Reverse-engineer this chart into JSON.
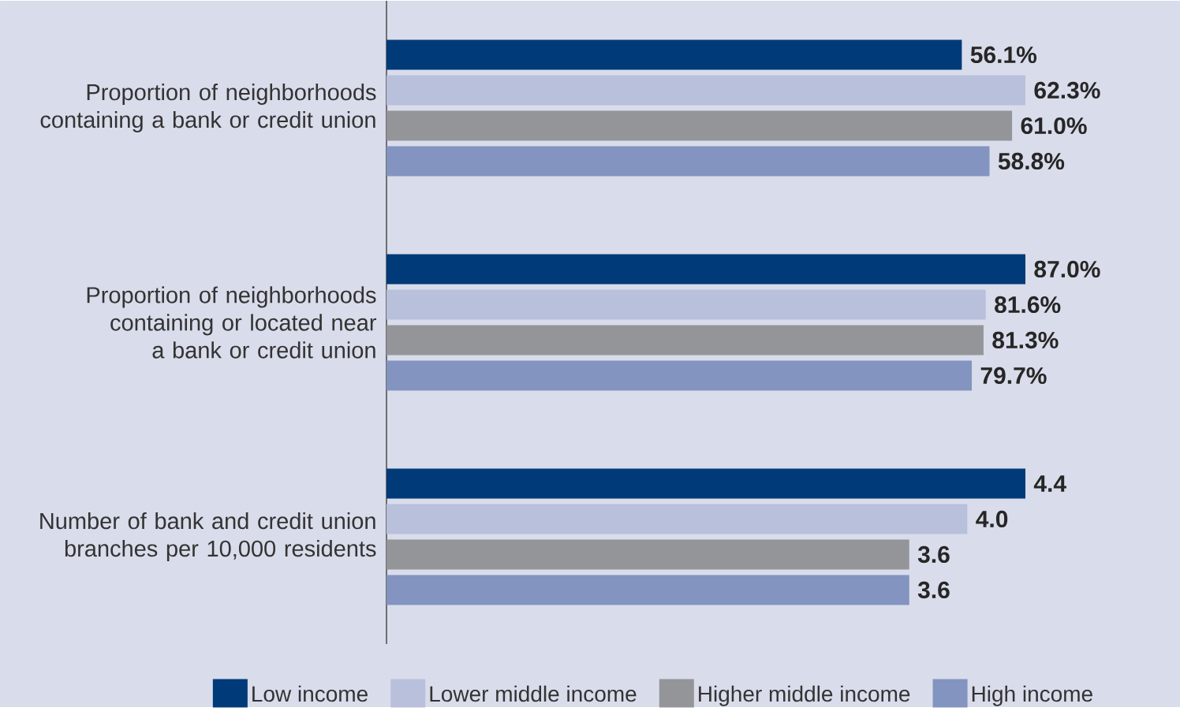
{
  "chart_data": [
    {
      "type": "bar",
      "orientation": "horizontal",
      "categories": [
        "Proportion of neighborhoods containing a bank or credit union"
      ],
      "series": [
        {
          "color": "#003a78",
          "values": [
            56.1
          ],
          "value_labels": [
            "56.1%"
          ]
        },
        {
          "color": "#b9c0dc",
          "values": [
            62.3
          ],
          "value_labels": [
            "62.3%"
          ]
        },
        {
          "color": "#949598",
          "values": [
            61.0
          ],
          "value_labels": [
            "61.0%"
          ]
        },
        {
          "color": "#8294bf",
          "values": [
            58.8
          ],
          "value_labels": [
            "58.8%"
          ]
        }
      ]
    },
    {
      "type": "bar",
      "orientation": "horizontal",
      "categories": [
        "Proportion of neighborhoods containing or located near a bank or credit union"
      ],
      "series": [
        {
          "color": "#003a78",
          "values": [
            87.0
          ],
          "value_labels": [
            "87.0%"
          ]
        },
        {
          "color": "#b9c0dc",
          "values": [
            81.6
          ],
          "value_labels": [
            "81.6%"
          ]
        },
        {
          "color": "#949598",
          "values": [
            81.3
          ],
          "value_labels": [
            "81.3%"
          ]
        },
        {
          "color": "#8294bf",
          "values": [
            79.7
          ],
          "value_labels": [
            "79.7%"
          ]
        }
      ]
    },
    {
      "type": "bar",
      "orientation": "horizontal",
      "categories": [
        "Number of bank and credit union branches per 10,000 residents"
      ],
      "legend": "bottom",
      "series": [
        {
          "name": "Low income",
          "color": "#003a78",
          "values": [
            4.4
          ],
          "value_labels": [
            "4.4"
          ]
        },
        {
          "name": "Lower middle income",
          "color": "#b9c0dc",
          "values": [
            4.0
          ],
          "value_labels": [
            "4.0"
          ]
        },
        {
          "name": "Higher middle income",
          "color": "#949598",
          "values": [
            3.6
          ],
          "value_labels": [
            "3.6"
          ]
        },
        {
          "name": "High income",
          "color": "#8294bf",
          "values": [
            3.6
          ],
          "value_labels": [
            "3.6"
          ]
        }
      ]
    }
  ]
}
